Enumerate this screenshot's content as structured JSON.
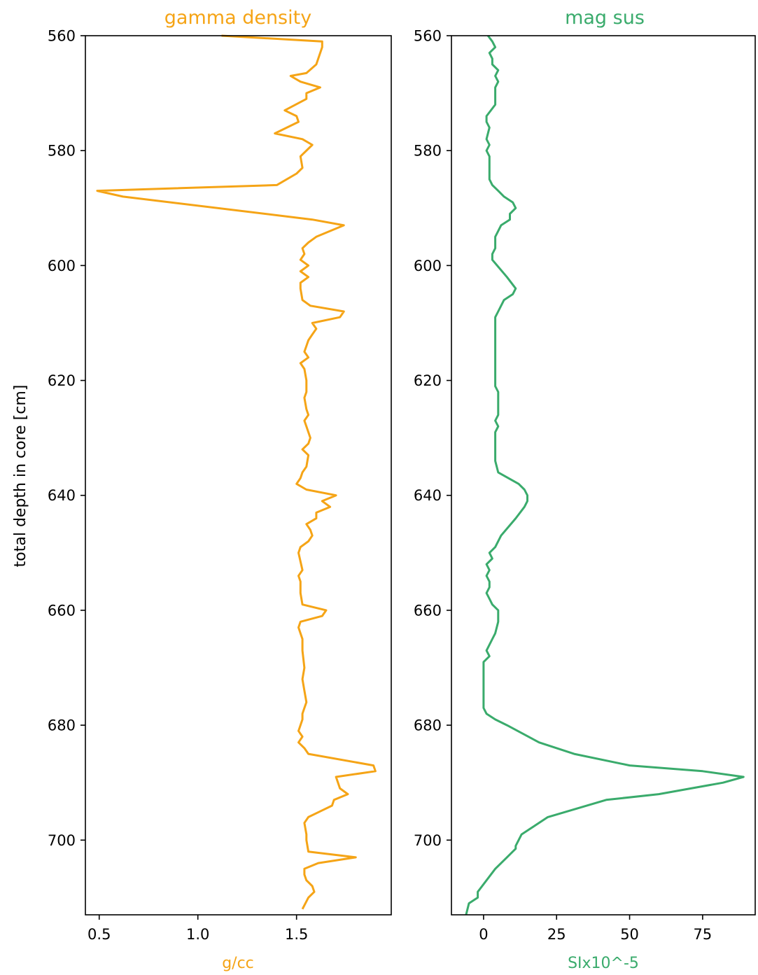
{
  "chart_data": [
    {
      "type": "line",
      "title": "gamma density",
      "xlabel": "g/cc",
      "ylabel": "total depth in core [cm]",
      "color": "#f5a416",
      "xlim": [
        0.43,
        1.98
      ],
      "ylim": [
        713,
        560
      ],
      "xticks": [
        0.5,
        1.0,
        1.5
      ],
      "xtick_labels": [
        "0.5",
        "1.0",
        "1.5"
      ],
      "yticks": [
        560,
        580,
        600,
        620,
        640,
        660,
        680,
        700
      ],
      "ytick_labels": [
        "560",
        "580",
        "600",
        "620",
        "640",
        "660",
        "680",
        "700"
      ],
      "grid": false,
      "series": [
        {
          "x": [
            1.12,
            1.63,
            1.63,
            1.6,
            1.55,
            1.47,
            1.52,
            1.62,
            1.55,
            1.55,
            1.44,
            1.5,
            1.51,
            1.39,
            1.53,
            1.58,
            1.52,
            1.53,
            1.5,
            1.4,
            0.49,
            0.62,
            1.58,
            1.74,
            1.6,
            1.56,
            1.53,
            1.54,
            1.52,
            1.56,
            1.52,
            1.56,
            1.52,
            1.52,
            1.53,
            1.57,
            1.74,
            1.72,
            1.58,
            1.6,
            1.58,
            1.56,
            1.55,
            1.54,
            1.56,
            1.52,
            1.54,
            1.55,
            1.55,
            1.54,
            1.55,
            1.56,
            1.54,
            1.55,
            1.57,
            1.56,
            1.53,
            1.56,
            1.55,
            1.53,
            1.52,
            1.5,
            1.55,
            1.7,
            1.63,
            1.67,
            1.6,
            1.6,
            1.55,
            1.57,
            1.58,
            1.56,
            1.52,
            1.51,
            1.53,
            1.51,
            1.52,
            1.52,
            1.53,
            1.65,
            1.63,
            1.52,
            1.51,
            1.53,
            1.53,
            1.54,
            1.53,
            1.54,
            1.55,
            1.54,
            1.53,
            1.53,
            1.52,
            1.51,
            1.53,
            1.51,
            1.54,
            1.56,
            1.89,
            1.9,
            1.7,
            1.72,
            1.76,
            1.69,
            1.68,
            1.62,
            1.56,
            1.54,
            1.55,
            1.55,
            1.56,
            1.8,
            1.61,
            1.54,
            1.54,
            1.55,
            1.58,
            1.59,
            1.56,
            1.53
          ],
          "y": [
            560,
            561,
            562,
            565,
            566.5,
            567,
            568,
            569,
            570,
            571,
            573,
            574,
            575,
            577,
            578,
            579,
            581,
            583,
            584,
            586,
            587,
            588,
            592,
            593,
            595,
            596,
            597,
            598,
            599,
            600,
            601,
            602,
            603,
            604,
            606,
            607,
            608,
            609,
            610,
            611,
            612,
            613,
            614,
            615,
            616,
            617,
            618,
            620,
            622,
            623,
            625,
            626,
            627,
            628,
            630,
            631,
            632,
            633,
            635,
            636,
            637,
            638,
            639,
            640,
            641,
            642,
            643,
            644,
            645,
            646,
            647,
            648,
            649,
            650,
            653,
            654,
            655,
            657,
            659,
            660,
            661,
            662,
            663,
            665,
            667,
            670,
            672,
            674,
            676,
            677,
            678,
            679,
            680,
            681,
            682,
            683,
            684,
            685,
            687,
            688,
            689,
            691,
            692,
            693,
            694,
            695,
            696,
            697,
            699,
            700,
            702,
            703,
            704,
            705,
            706,
            707,
            708,
            709,
            710,
            712
          ]
        }
      ]
    },
    {
      "type": "line",
      "title": "mag sus",
      "xlabel": "SIx10^-5",
      "ylabel": "",
      "color": "#3aab6c",
      "xlim": [
        -11,
        93
      ],
      "ylim": [
        713,
        560
      ],
      "xticks": [
        0,
        25,
        50,
        75
      ],
      "xtick_labels": [
        "0",
        "25",
        "50",
        "75"
      ],
      "yticks": [
        560,
        580,
        600,
        620,
        640,
        660,
        680,
        700
      ],
      "ytick_labels": [
        "560",
        "580",
        "600",
        "620",
        "640",
        "660",
        "680",
        "700"
      ],
      "grid": false,
      "series": [
        {
          "x": [
            1.5,
            3,
            4,
            2,
            3,
            3,
            5,
            4,
            5,
            4,
            4,
            4,
            4,
            1,
            1,
            2,
            1,
            2,
            1,
            2,
            2,
            2,
            3,
            5,
            7,
            10,
            11,
            9,
            9,
            6,
            5,
            4,
            4,
            4,
            3,
            3,
            8,
            11,
            10,
            7,
            5,
            4,
            4,
            4,
            4,
            4,
            4,
            5,
            5,
            5,
            4,
            5,
            4,
            4,
            4,
            5,
            12,
            14,
            15,
            15,
            14,
            11,
            6,
            4,
            2,
            3,
            1,
            2,
            1,
            2,
            2,
            1,
            2,
            3,
            5,
            5,
            5,
            4,
            3,
            1,
            2,
            0,
            0,
            0,
            0,
            0,
            0,
            1,
            4,
            8,
            19,
            31,
            50,
            75,
            89,
            82,
            60,
            42,
            22,
            16,
            13,
            12,
            11,
            11,
            10,
            8,
            4,
            -2,
            -2,
            -5,
            -6
          ],
          "y": [
            560,
            561,
            562,
            563,
            564,
            565,
            566,
            567,
            568,
            569,
            570,
            571,
            572,
            574,
            575,
            576,
            578,
            579,
            580,
            581,
            583,
            585,
            586,
            587,
            588,
            589,
            590,
            591,
            592,
            593,
            594,
            595,
            596,
            597,
            598,
            599,
            602,
            604,
            605,
            606,
            608,
            609,
            610,
            611,
            613,
            616,
            621,
            622,
            625,
            626,
            627,
            628,
            629,
            630,
            634,
            636,
            638,
            639,
            640,
            641,
            642,
            644,
            647,
            649,
            650,
            651,
            652,
            653,
            654,
            655,
            656,
            657,
            658,
            659,
            660,
            661,
            662,
            664,
            665,
            667,
            668,
            669,
            670,
            672,
            674,
            676,
            677,
            678,
            679,
            680,
            683,
            685,
            687,
            688,
            689,
            690,
            692,
            693,
            696,
            698,
            699,
            700,
            701,
            701.5,
            702,
            703,
            705,
            709,
            710,
            711,
            713
          ]
        }
      ]
    }
  ]
}
